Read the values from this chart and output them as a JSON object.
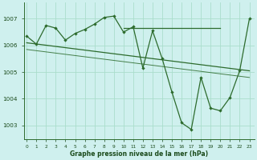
{
  "title": "Graphe pression niveau de la mer (hPa)",
  "bg_color": "#cff0ee",
  "grid_color": "#aaddcc",
  "line_color": "#2d6b2d",
  "xlabel_color": "#1a4a1a",
  "x_ticks": [
    0,
    1,
    2,
    3,
    4,
    5,
    6,
    7,
    8,
    9,
    10,
    11,
    12,
    13,
    14,
    15,
    16,
    17,
    18,
    19,
    20,
    21,
    22,
    23
  ],
  "y_ticks": [
    1003,
    1004,
    1005,
    1006,
    1007
  ],
  "ylim": [
    1002.5,
    1007.6
  ],
  "xlim": [
    -0.3,
    23.5
  ],
  "main_data": [
    1006.35,
    1006.05,
    1006.45,
    1006.75,
    1006.2,
    1006.55,
    1006.55,
    1006.65,
    1006.75,
    1007.05,
    1006.5,
    1006.7,
    1005.1,
    1006.55,
    1004.95,
    1005.45,
    1004.25,
    1003.05,
    1002.85,
    1004.8,
    1003.65,
    1003.55,
    1004.0,
    1005.05,
    1006.15,
    1006.75,
    1007.0
  ],
  "main_data_x": [
    0,
    1,
    2,
    3,
    4,
    5,
    6,
    7,
    8,
    9,
    10,
    11,
    12,
    13,
    14,
    15,
    16,
    17,
    18,
    19,
    20,
    21,
    22,
    23
  ],
  "main_data_y": [
    1006.35,
    1006.05,
    1006.75,
    1006.65,
    1006.2,
    1006.45,
    1006.6,
    1006.8,
    1007.05,
    1007.1,
    1006.5,
    1006.7,
    1005.15,
    1006.55,
    1005.5,
    1004.25,
    1003.1,
    1002.85,
    1004.8,
    1003.65,
    1003.55,
    1004.05,
    1005.05,
    1007.0
  ],
  "trend1_x": [
    0,
    23
  ],
  "trend1_y": [
    1006.1,
    1005.05
  ],
  "trend2_x": [
    0,
    23
  ],
  "trend2_y": [
    1005.85,
    1004.8
  ],
  "flat_line_x": [
    10,
    20
  ],
  "flat_line_y": [
    1006.65,
    1006.65
  ]
}
